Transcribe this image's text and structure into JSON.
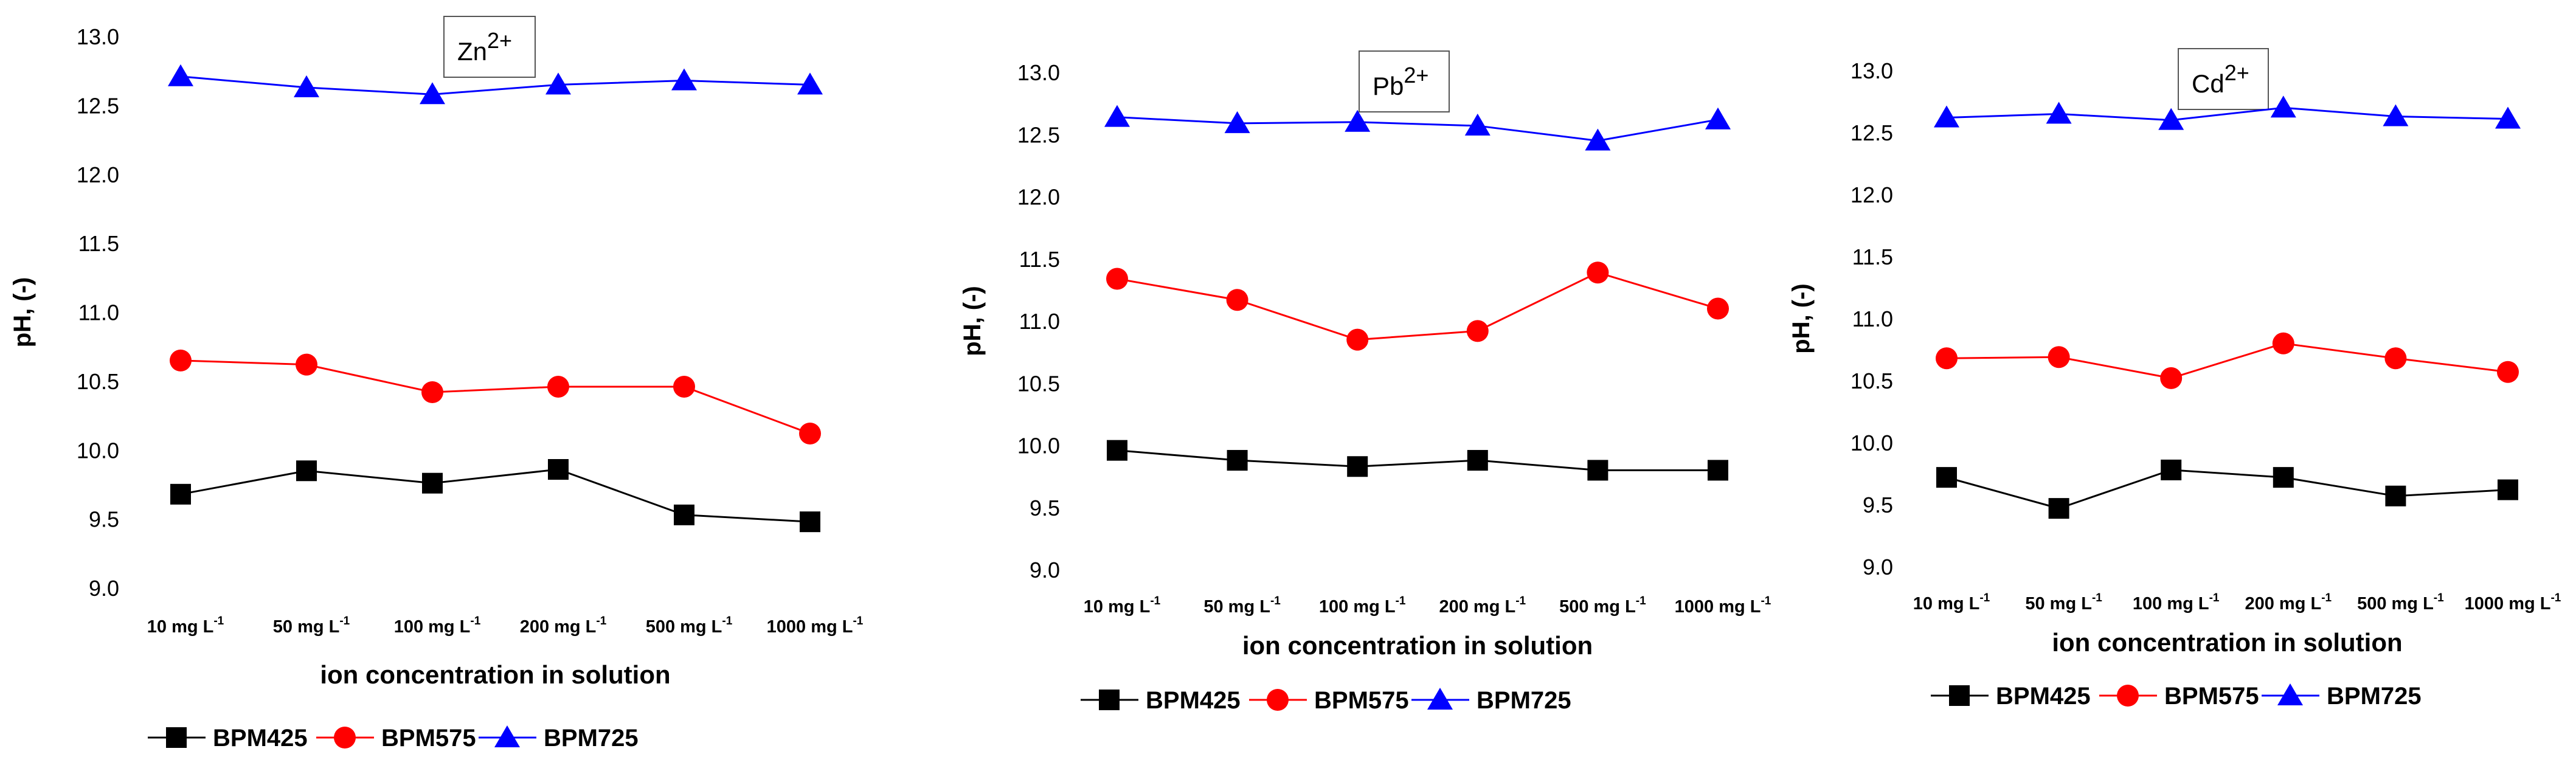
{
  "chart_data": [
    {
      "type": "line",
      "title": "Zn",
      "title_superscript": "2+",
      "xlabel": "ion concentration in solution",
      "ylabel": "pH, (-)",
      "ylim": [
        9.0,
        13.0
      ],
      "yticks": [
        "9.0",
        "9.5",
        "10.0",
        "10.5",
        "11.0",
        "11.5",
        "12.0",
        "12.5",
        "13.0"
      ],
      "categories": [
        {
          "base": "10 mg L",
          "sup": "-1"
        },
        {
          "base": "50 mg L",
          "sup": "-1"
        },
        {
          "base": "100 mg L",
          "sup": "-1"
        },
        {
          "base": "200 mg L",
          "sup": "-1"
        },
        {
          "base": "500 mg L",
          "sup": "-1"
        },
        {
          "base": "1000 mg L",
          "sup": "-1"
        }
      ],
      "series": [
        {
          "name": "BPM425",
          "marker": "square",
          "color": "#000000",
          "values": [
            9.68,
            9.85,
            9.76,
            9.86,
            9.53,
            9.48
          ]
        },
        {
          "name": "BPM575",
          "marker": "circle",
          "color": "#ff0000",
          "values": [
            10.65,
            10.62,
            10.42,
            10.46,
            10.46,
            10.12
          ]
        },
        {
          "name": "BPM725",
          "marker": "triangle",
          "color": "#0000ff",
          "values": [
            12.71,
            12.63,
            12.58,
            12.65,
            12.68,
            12.65
          ]
        }
      ]
    },
    {
      "type": "line",
      "title": "Pb",
      "title_superscript": "2+",
      "xlabel": "ion concentration in solution",
      "ylabel": "pH, (-)",
      "ylim": [
        9.0,
        13.0
      ],
      "yticks": [
        "9.0",
        "9.5",
        "10.0",
        "10.5",
        "11.0",
        "11.5",
        "12.0",
        "12.5",
        "13.0"
      ],
      "categories": [
        {
          "base": "10 mg L",
          "sup": "-1"
        },
        {
          "base": "50 mg L",
          "sup": "-1"
        },
        {
          "base": "100 mg L",
          "sup": "-1"
        },
        {
          "base": "200 mg L",
          "sup": "-1"
        },
        {
          "base": "500 mg L",
          "sup": "-1"
        },
        {
          "base": "1000 mg L",
          "sup": "-1"
        }
      ],
      "series": [
        {
          "name": "BPM425",
          "marker": "square",
          "color": "#000000",
          "values": [
            9.96,
            9.88,
            9.83,
            9.88,
            9.8,
            9.8
          ]
        },
        {
          "name": "BPM575",
          "marker": "circle",
          "color": "#ff0000",
          "values": [
            11.34,
            11.17,
            10.85,
            10.92,
            11.39,
            11.1
          ]
        },
        {
          "name": "BPM725",
          "marker": "triangle",
          "color": "#0000ff",
          "values": [
            12.64,
            12.59,
            12.6,
            12.57,
            12.45,
            12.62
          ]
        }
      ]
    },
    {
      "type": "line",
      "title": "Cd",
      "title_superscript": "2+",
      "xlabel": "ion concentration in solution",
      "ylabel": "pH, (-)",
      "ylim": [
        9.0,
        13.0
      ],
      "yticks": [
        "9.0",
        "9.5",
        "10.0",
        "10.5",
        "11.0",
        "11.5",
        "12.0",
        "12.5",
        "13.0"
      ],
      "categories": [
        {
          "base": "10 mg L",
          "sup": "-1"
        },
        {
          "base": "50 mg L",
          "sup": "-1"
        },
        {
          "base": "100 mg L",
          "sup": "-1"
        },
        {
          "base": "200 mg L",
          "sup": "-1"
        },
        {
          "base": "500 mg L",
          "sup": "-1"
        },
        {
          "base": "1000 mg L",
          "sup": "-1"
        }
      ],
      "series": [
        {
          "name": "BPM425",
          "marker": "square",
          "color": "#000000",
          "values": [
            9.72,
            9.47,
            9.78,
            9.72,
            9.57,
            9.62
          ]
        },
        {
          "name": "BPM575",
          "marker": "circle",
          "color": "#ff0000",
          "values": [
            10.68,
            10.69,
            10.52,
            10.8,
            10.68,
            10.57
          ]
        },
        {
          "name": "BPM725",
          "marker": "triangle",
          "color": "#0000ff",
          "values": [
            12.62,
            12.65,
            12.6,
            12.7,
            12.63,
            12.61
          ]
        }
      ]
    }
  ]
}
